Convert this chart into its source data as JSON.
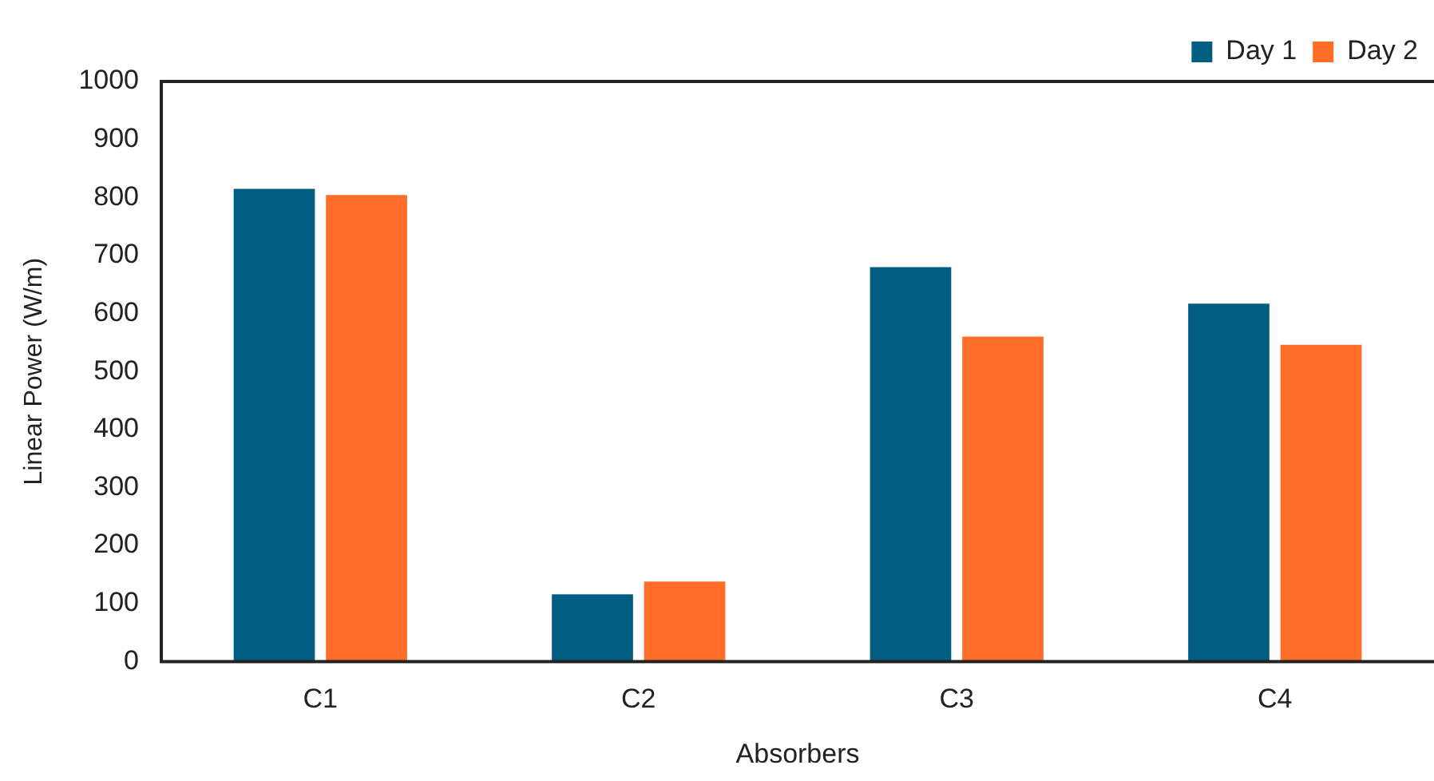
{
  "chart_data": {
    "type": "bar",
    "xlabel": "Absorbers",
    "ylabel": "Linear Power (W/m)",
    "categories": [
      "C1",
      "C2",
      "C3",
      "C4"
    ],
    "series": [
      {
        "name": "Day 1",
        "color": "#005e82",
        "values": [
          815,
          116,
          680,
          617
        ]
      },
      {
        "name": "Day 2",
        "color": "#ff6d28",
        "values": [
          804,
          138,
          560,
          546
        ]
      }
    ],
    "ylim": [
      0,
      1000
    ],
    "yticks": [
      0,
      100,
      200,
      300,
      400,
      500,
      600,
      700,
      800,
      900,
      1000
    ],
    "grid": false,
    "legend": "top right"
  }
}
